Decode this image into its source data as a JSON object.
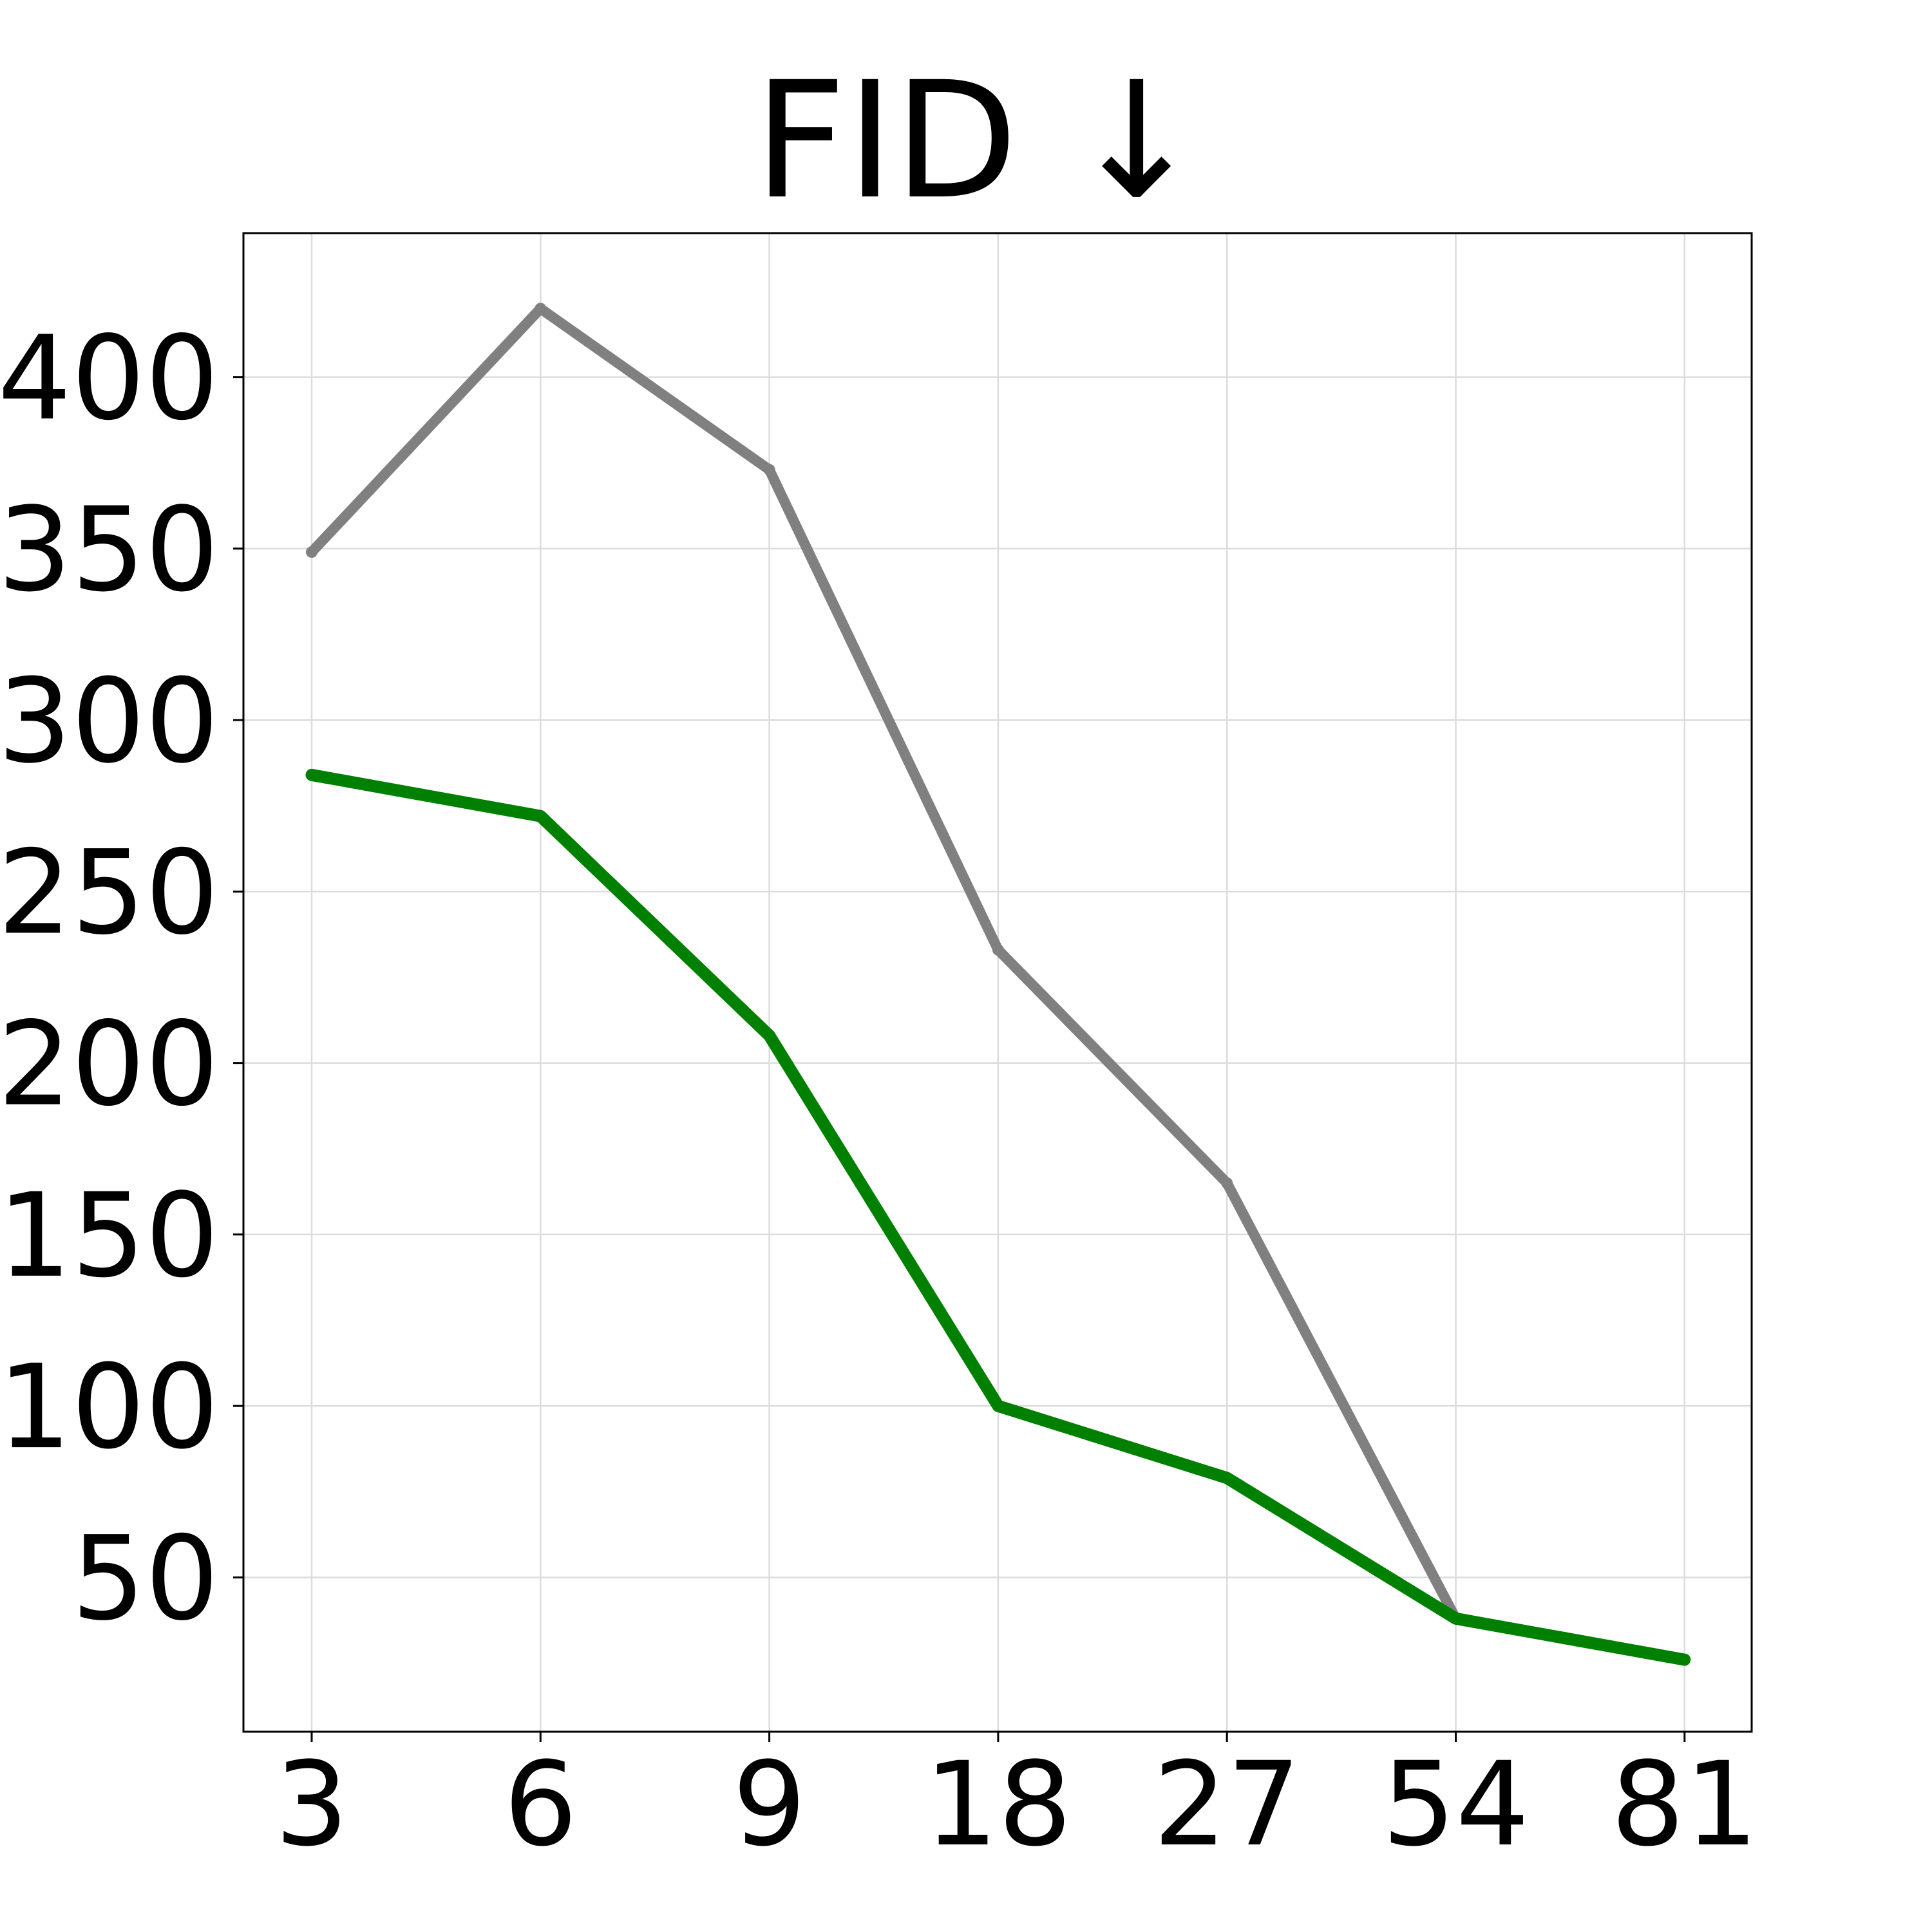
{
  "chart_data": {
    "type": "line",
    "title": "FID ↓",
    "xlabel": "",
    "ylabel": "",
    "x": [
      "3",
      "6",
      "9",
      "18",
      "27",
      "54",
      "81"
    ],
    "x_axis_scale": "categorical",
    "ylim": [
      5,
      442
    ],
    "yticks": [
      50,
      100,
      150,
      200,
      250,
      300,
      350,
      400
    ],
    "grid": true,
    "legend": "none",
    "series": [
      {
        "color": "#808080",
        "values": [
          349,
          420,
          373,
          233,
          165,
          38,
          26
        ]
      },
      {
        "color": "#008000",
        "values": [
          284,
          272,
          208,
          100,
          79,
          38,
          26
        ]
      }
    ]
  }
}
